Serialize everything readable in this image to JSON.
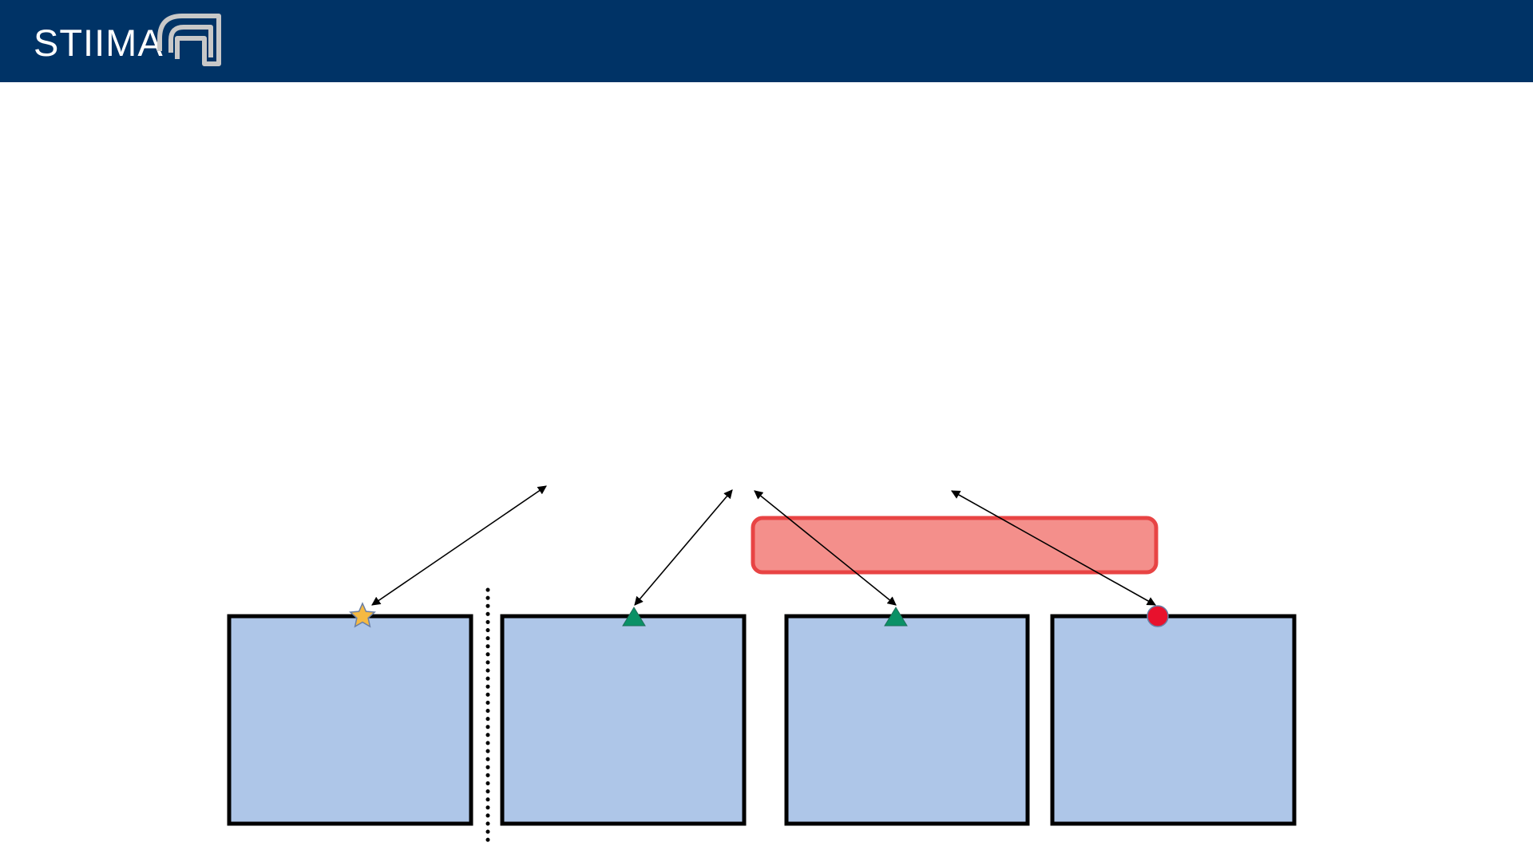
{
  "header": {
    "logo_text": "STIIMA",
    "background_color": "#003366",
    "logo_text_color": "#ffffff",
    "logo_mark_color": "#c8c8c8"
  },
  "diagram": {
    "box_fill": "#aec6e8",
    "box_stroke": "#000000",
    "highlight_fill": "#f48f8b",
    "highlight_stroke": "#e84444",
    "markers": [
      {
        "shape": "star",
        "color": "#f5b942"
      },
      {
        "shape": "triangle",
        "color": "#0a9166"
      },
      {
        "shape": "triangle",
        "color": "#0a9166"
      },
      {
        "shape": "circle",
        "color": "#e8112d"
      }
    ]
  }
}
